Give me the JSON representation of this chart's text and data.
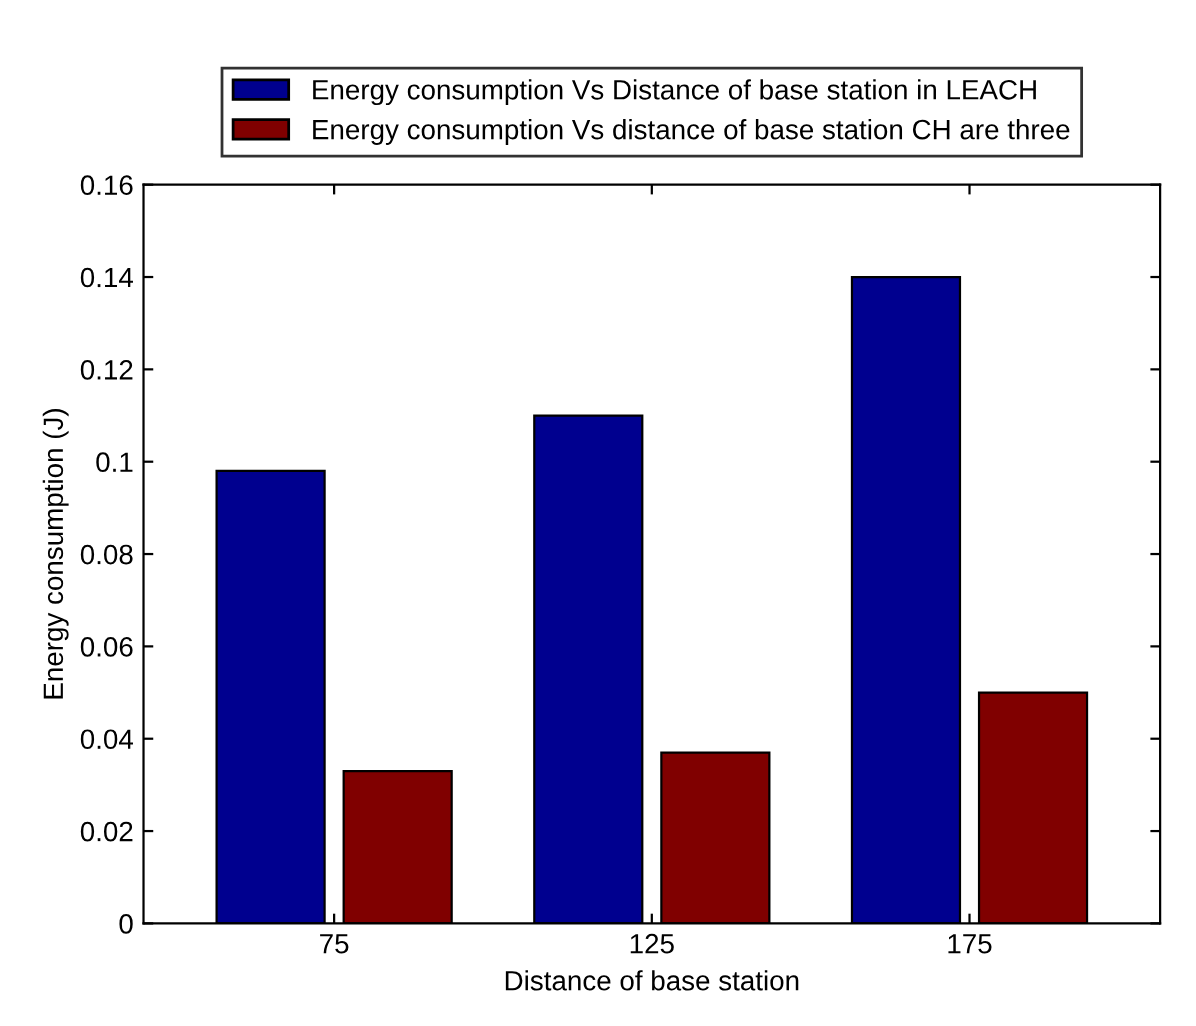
{
  "chart_data": {
    "type": "bar",
    "xlabel": "Distance of base station",
    "ylabel": "Energy consumption (J)",
    "categories": [
      "75",
      "125",
      "175"
    ],
    "series": [
      {
        "name": "Energy consumption Vs Distance of base station in LEACH",
        "color": "#00008f",
        "values": [
          0.098,
          0.11,
          0.14
        ]
      },
      {
        "name": "Energy consumption Vs distance of base station CH are three",
        "color": "#800000",
        "values": [
          0.033,
          0.037,
          0.05
        ]
      }
    ],
    "ylim": [
      0,
      0.16
    ],
    "yticks": [
      0,
      0.02,
      0.04,
      0.06,
      0.08,
      {
        "value": 0.1,
        "label": "0.1"
      },
      0.12,
      0.14,
      0.16
    ],
    "grid": false,
    "legend": "top"
  }
}
